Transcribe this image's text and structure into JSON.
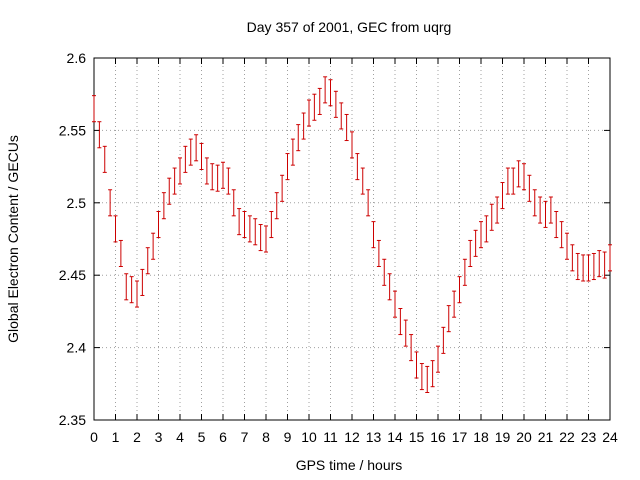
{
  "chart_data": {
    "type": "scatter",
    "title": "Day 357 of 2001, GEC from uqrg",
    "xlabel": "GPS time / hours",
    "ylabel": "Global Electron Content / GECUs",
    "xlim": [
      0,
      24
    ],
    "ylim": [
      2.35,
      2.6
    ],
    "xticks": [
      "0",
      "1",
      "2",
      "3",
      "4",
      "5",
      "6",
      "7",
      "8",
      "9",
      "10",
      "11",
      "12",
      "13",
      "14",
      "15",
      "16",
      "17",
      "18",
      "19",
      "20",
      "21",
      "22",
      "23",
      "24"
    ],
    "yticks": [
      "2.35",
      "2.4",
      "2.45",
      "2.5",
      "2.55",
      "2.6"
    ],
    "grid": true,
    "series_color": "#cc0000",
    "error_halfwidth": 0.009,
    "x": [
      0,
      0.25,
      0.5,
      0.75,
      1,
      1.25,
      1.5,
      1.75,
      2,
      2.25,
      2.5,
      2.75,
      3,
      3.25,
      3.5,
      3.75,
      4,
      4.25,
      4.5,
      4.75,
      5,
      5.25,
      5.5,
      5.75,
      6,
      6.25,
      6.5,
      6.75,
      7,
      7.25,
      7.5,
      7.75,
      8,
      8.25,
      8.5,
      8.75,
      9,
      9.25,
      9.5,
      9.75,
      10,
      10.25,
      10.5,
      10.75,
      11,
      11.25,
      11.5,
      11.75,
      12,
      12.25,
      12.5,
      12.75,
      13,
      13.25,
      13.5,
      13.75,
      14,
      14.25,
      14.5,
      14.75,
      15,
      15.25,
      15.5,
      15.75,
      16,
      16.25,
      16.5,
      16.75,
      17,
      17.25,
      17.5,
      17.75,
      18,
      18.25,
      18.5,
      18.75,
      19,
      19.25,
      19.5,
      19.75,
      20,
      20.25,
      20.5,
      20.75,
      21,
      21.25,
      21.5,
      21.75,
      22,
      22.25,
      22.5,
      22.75,
      23,
      23.25,
      23.5,
      23.75,
      24
    ],
    "y": [
      2.565,
      2.547,
      2.53,
      2.5,
      2.482,
      2.465,
      2.442,
      2.44,
      2.437,
      2.445,
      2.46,
      2.47,
      2.485,
      2.498,
      2.508,
      2.515,
      2.522,
      2.53,
      2.535,
      2.538,
      2.532,
      2.522,
      2.518,
      2.517,
      2.519,
      2.515,
      2.5,
      2.487,
      2.485,
      2.482,
      2.48,
      2.476,
      2.475,
      2.485,
      2.498,
      2.51,
      2.525,
      2.535,
      2.545,
      2.553,
      2.562,
      2.566,
      2.57,
      2.578,
      2.576,
      2.568,
      2.56,
      2.552,
      2.54,
      2.525,
      2.515,
      2.5,
      2.478,
      2.465,
      2.452,
      2.442,
      2.43,
      2.418,
      2.41,
      2.4,
      2.388,
      2.38,
      2.378,
      2.382,
      2.392,
      2.405,
      2.42,
      2.43,
      2.44,
      2.452,
      2.465,
      2.472,
      2.478,
      2.482,
      2.49,
      2.495,
      2.505,
      2.515,
      2.515,
      2.52,
      2.518,
      2.51,
      2.5,
      2.495,
      2.492,
      2.495,
      2.485,
      2.478,
      2.47,
      2.462,
      2.456,
      2.455,
      2.455,
      2.456,
      2.458,
      2.457,
      2.462
    ]
  }
}
